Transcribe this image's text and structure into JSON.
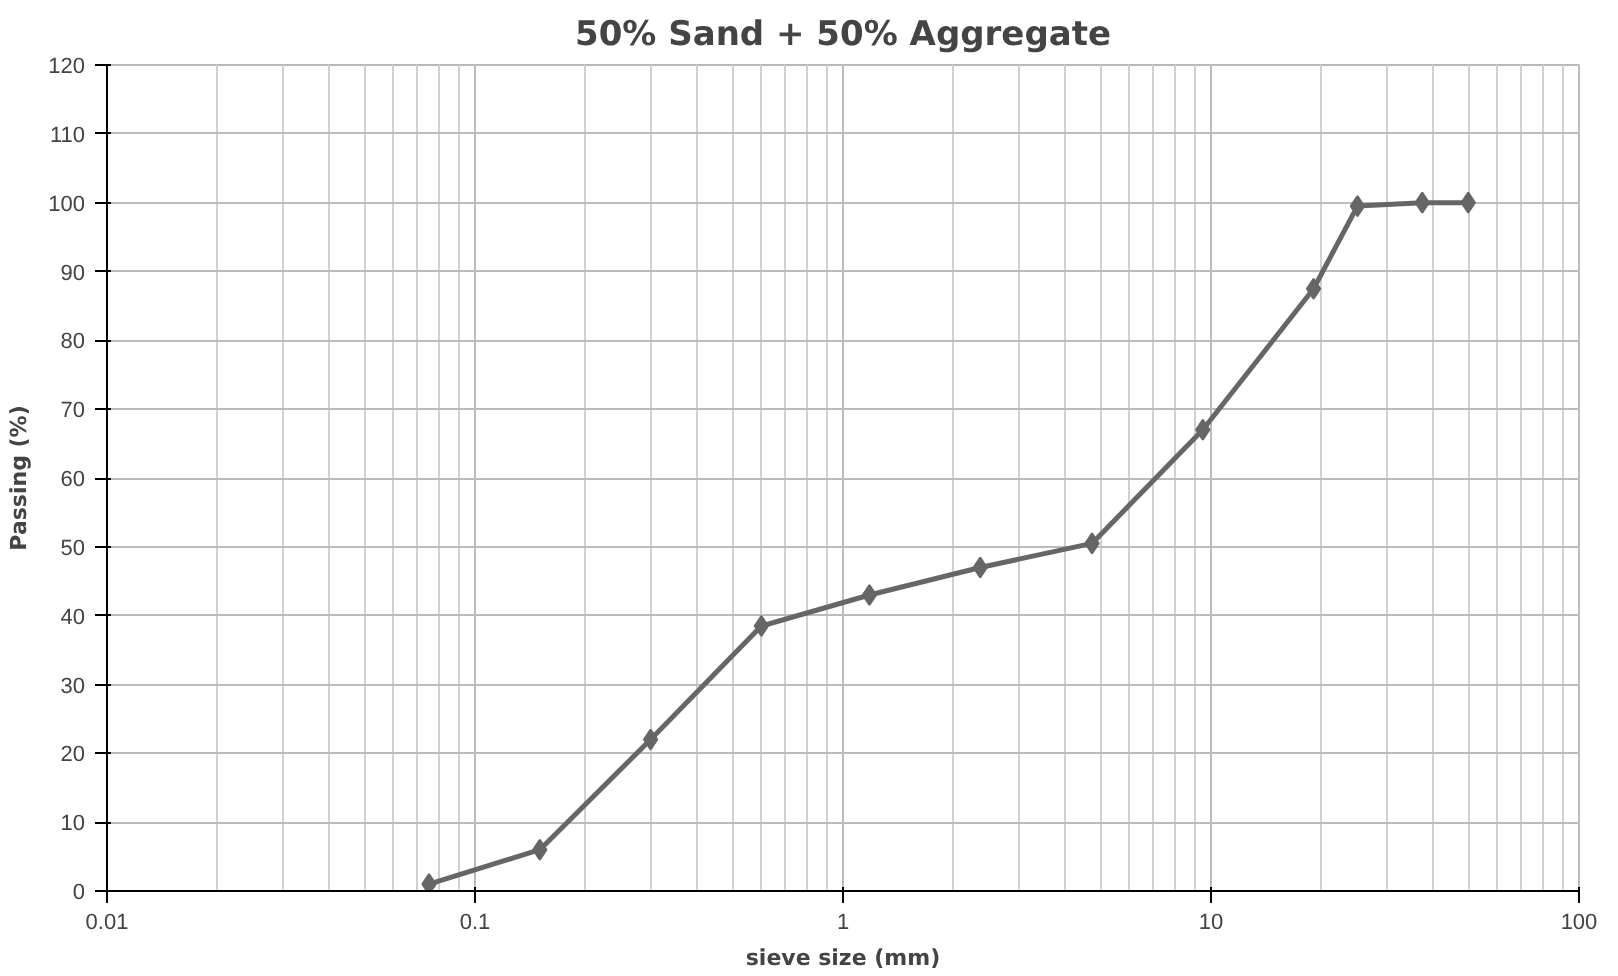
{
  "chart_data": {
    "type": "line",
    "title": "50% Sand + 50% Aggregate",
    "xlabel": "sieve size (mm)",
    "ylabel": "Passing (%)",
    "x": [
      0.075,
      0.15,
      0.3,
      0.6,
      1.18,
      2.36,
      4.75,
      9.5,
      19,
      25,
      37.5,
      50
    ],
    "series": [
      {
        "color": "#666666",
        "values": [
          1,
          6,
          22,
          38.5,
          43,
          47,
          50.5,
          67,
          87.5,
          99.5,
          100,
          100
        ]
      }
    ],
    "log": "x",
    "xlim": [
      0.01,
      100
    ],
    "xticks": [
      0.01,
      0.1,
      1,
      10,
      100
    ],
    "ylim": [
      0,
      120
    ],
    "yticks": [
      0,
      10,
      20,
      30,
      40,
      50,
      60,
      70,
      80,
      90,
      100,
      110,
      120
    ],
    "grid": true,
    "marker": "diamond",
    "line_style": "solid"
  }
}
